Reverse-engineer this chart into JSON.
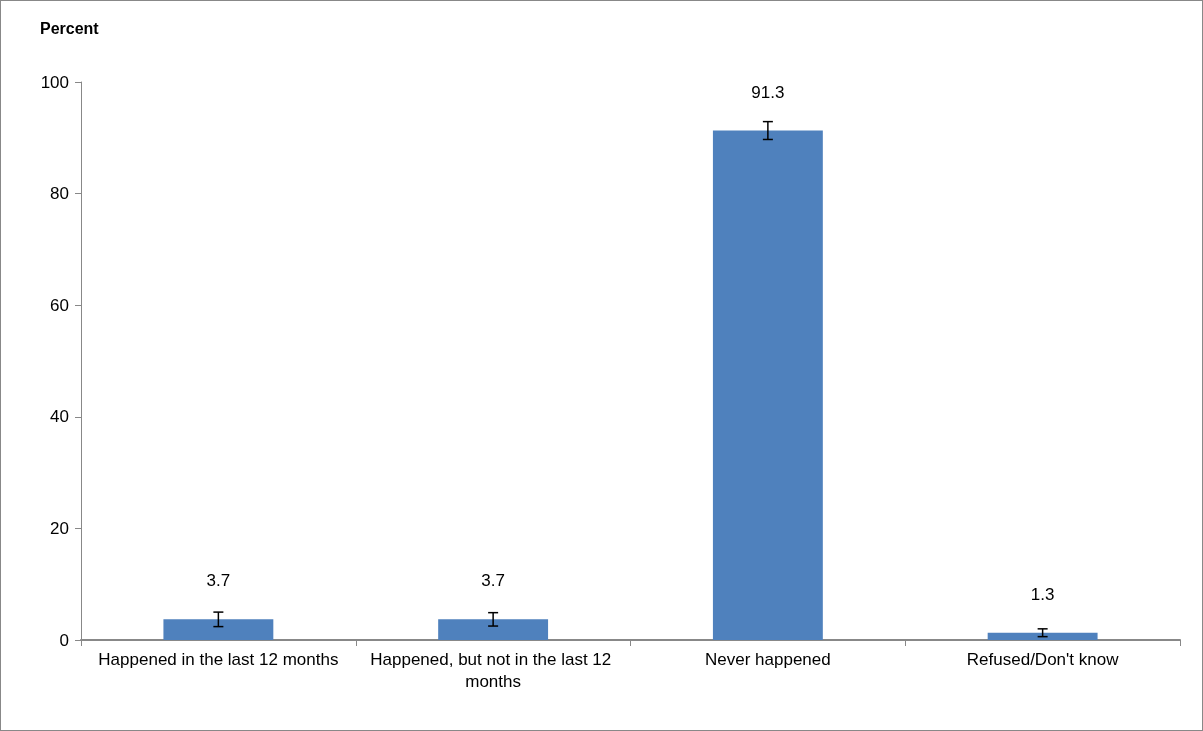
{
  "chart_data": {
    "type": "bar",
    "ylabel": "Percent",
    "categories": [
      "Happened in the last 12 months",
      "Happened, but not in the last 12 months",
      "Never happened",
      "Refused/Don't know"
    ],
    "values": [
      3.7,
      3.7,
      91.3,
      1.3
    ],
    "errors": [
      1.3,
      1.2,
      1.6,
      0.7
    ],
    "color": "#4f81bd",
    "ylim": [
      0,
      100
    ],
    "yticks": [
      0,
      20,
      40,
      60,
      80,
      100
    ],
    "grid": false,
    "data_labels": true
  }
}
